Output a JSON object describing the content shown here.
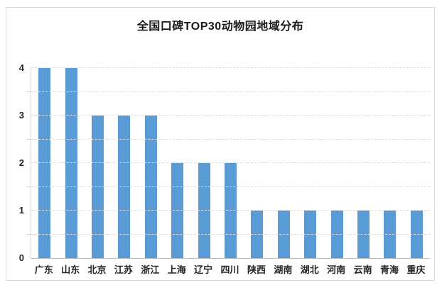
{
  "title": "全国口碑TOP30动物园地域分布",
  "colors": {
    "bar": "#5b9bd5",
    "gridline": "#dcdcdc",
    "axis": "#bfbfbf",
    "text": "#262626",
    "border": "#d9d9d9",
    "background": "#ffffff"
  },
  "chart_data": {
    "type": "bar",
    "title": "全国口碑TOP30动物园地域分布",
    "categories": [
      "广东",
      "山东",
      "北京",
      "江苏",
      "浙江",
      "上海",
      "辽宁",
      "四川",
      "陕西",
      "湖南",
      "湖北",
      "河南",
      "云南",
      "青海",
      "重庆"
    ],
    "values": [
      4,
      4,
      3,
      3,
      3,
      2,
      2,
      2,
      1,
      1,
      1,
      1,
      1,
      1,
      1
    ],
    "xlabel": "",
    "ylabel": "",
    "ylim": [
      0,
      4
    ],
    "yticks": [
      0,
      1,
      2,
      3,
      4
    ],
    "grid": "on",
    "grid_step": 0.5,
    "legend": "none",
    "bar_color": "#5b9bd5"
  }
}
